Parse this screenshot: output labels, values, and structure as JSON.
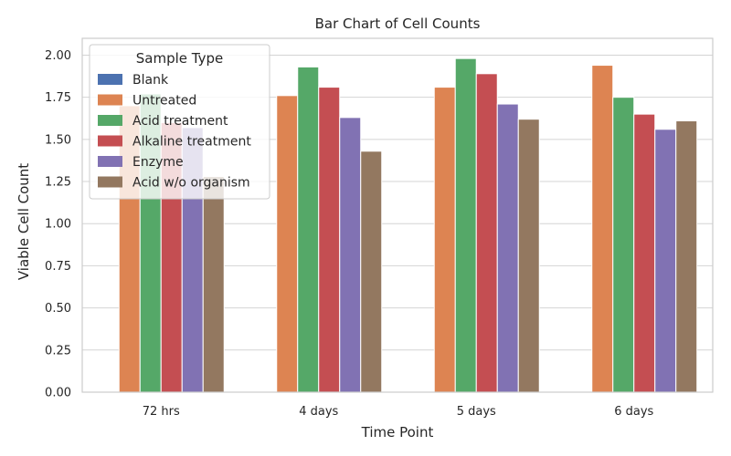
{
  "chart_data": {
    "type": "bar",
    "title": "Bar Chart of Cell Counts",
    "xlabel": "Time Point",
    "ylabel": "Viable Cell Count",
    "ylim": [
      0,
      2.1
    ],
    "yticks": [
      "0.00",
      "0.25",
      "0.50",
      "0.75",
      "1.00",
      "1.25",
      "1.50",
      "1.75",
      "2.00"
    ],
    "grid": true,
    "legend_title": "Sample Type",
    "legend_position": "top-left",
    "categories": [
      "72 hrs",
      "4 days",
      "5 days",
      "6 days"
    ],
    "series": [
      {
        "name": "Blank",
        "color": "#4c72b0",
        "values": [
          0,
          0,
          0,
          0
        ]
      },
      {
        "name": "Untreated",
        "color": "#dd8452",
        "values": [
          1.7,
          1.76,
          1.81,
          1.94
        ]
      },
      {
        "name": "Acid treatment",
        "color": "#55a868",
        "values": [
          1.77,
          1.93,
          1.98,
          1.75
        ]
      },
      {
        "name": "Alkaline treatment",
        "color": "#c44e52",
        "values": [
          1.6,
          1.81,
          1.89,
          1.65
        ]
      },
      {
        "name": "Enzyme",
        "color": "#8172b3",
        "values": [
          1.57,
          1.63,
          1.71,
          1.56
        ]
      },
      {
        "name": "Acid w/o organism",
        "color": "#937860",
        "values": [
          1.28,
          1.43,
          1.62,
          1.61
        ]
      }
    ]
  }
}
